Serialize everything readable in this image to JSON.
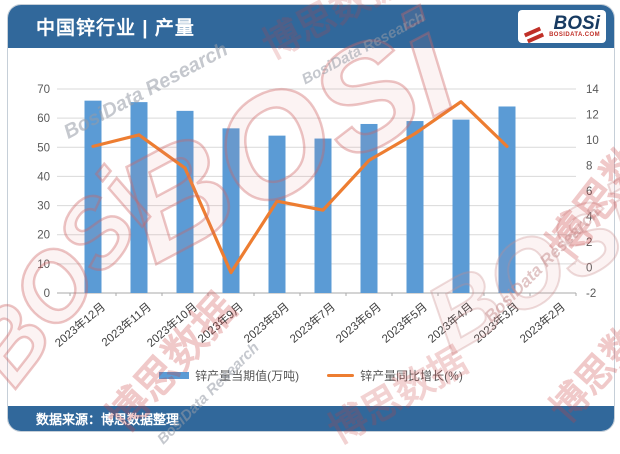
{
  "header": {
    "title": "中国锌行业 | 产量",
    "logo": {
      "text": "BOSi",
      "subtext": "BOSIDATA.COM"
    }
  },
  "footer": {
    "source": "数据来源：博思数据整理"
  },
  "colors": {
    "header_bg": "#31689b",
    "bar": "#5b9bd5",
    "line": "#ed7d31",
    "grid": "#d9d9d9",
    "axis_line": "#a9a9a9",
    "axis_text": "#595959",
    "logo_red": "#c03028",
    "logo_navy": "#173a61"
  },
  "legend": [
    {
      "label": "锌产量当期值(万吨)",
      "type": "bar"
    },
    {
      "label": "锌产量同比增长(%)",
      "type": "line"
    }
  ],
  "watermarks": {
    "logo_text": "BOSi",
    "brand_cn": "博思数据",
    "brand_en": "BosiData Research"
  },
  "chart_data": {
    "type": "bar+line combo",
    "title": "中国锌行业 | 产量",
    "categories": [
      "2023年12月",
      "2023年11月",
      "2023年10月",
      "2023年9月",
      "2023年8月",
      "2023年7月",
      "2023年6月",
      "2023年5月",
      "2023年4月",
      "2023年3月",
      "2023年2月"
    ],
    "series": [
      {
        "name": "锌产量当期值(万吨)",
        "type": "bar",
        "axis": "left",
        "values": [
          66,
          65.5,
          62.5,
          56.5,
          54,
          53,
          58,
          59,
          59.5,
          64,
          null
        ]
      },
      {
        "name": "锌产量同比增长(%)",
        "type": "line",
        "axis": "right",
        "values": [
          9.5,
          10.4,
          7.8,
          -0.4,
          5.2,
          4.5,
          8.4,
          10.5,
          13,
          9.5,
          null
        ]
      }
    ],
    "left_axis": {
      "min": 0,
      "max": 70,
      "step": 10,
      "ticks": [
        0,
        10,
        20,
        30,
        40,
        50,
        60,
        70
      ]
    },
    "right_axis": {
      "min": -2,
      "max": 14,
      "step": 2,
      "ticks": [
        -2,
        0,
        2,
        4,
        6,
        8,
        10,
        12,
        14
      ]
    },
    "grid": "horizontal gridlines at left-axis steps",
    "legend_position": "bottom",
    "x_label_rotation": -40
  }
}
